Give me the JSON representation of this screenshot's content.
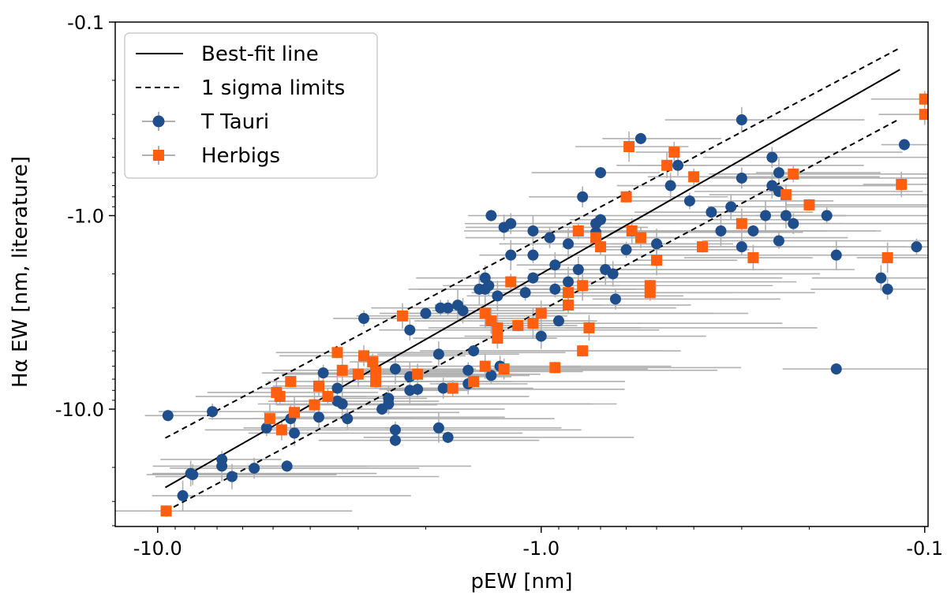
{
  "chart_data": {
    "type": "scatter",
    "xscale": "log",
    "yscale": "log",
    "xlabel": "pEW [nm]",
    "ylabel": "Hα EW [nm, literature]",
    "x_ticks": [
      {
        "value": -10.0,
        "label": "-10.0"
      },
      {
        "value": -1.0,
        "label": "-1.0"
      },
      {
        "value": -0.1,
        "label": "-0.1"
      }
    ],
    "y_ticks": [
      {
        "value": -0.1,
        "label": "-0.1"
      },
      {
        "value": -1.0,
        "label": "-1.0"
      },
      {
        "value": -10.0,
        "label": "-10.0"
      }
    ],
    "xlim": [
      -12.9,
      -0.098
    ],
    "ylim": [
      -0.1,
      -40.4
    ],
    "legend_position": "top-left",
    "lines": [
      {
        "name": "Best-fit line",
        "style": "solid",
        "x": [
          -9.55,
          -0.116
        ],
        "y": [
          -25.4,
          -0.176
        ]
      },
      {
        "name": "1 sigma limits",
        "style": "dashed",
        "x": [
          -9.55,
          -0.116
        ],
        "y": [
          -14.1,
          -0.136
        ]
      },
      {
        "name": "1 sigma limits",
        "style": "dashed",
        "x": [
          -9.55,
          -0.116
        ],
        "y": [
          -33.8,
          -0.316
        ]
      }
    ],
    "series": [
      {
        "name": "T Tauri",
        "color": "#1f4e8c",
        "marker": "circle",
        "x": [
          -9.4,
          -8.6,
          -8.2,
          -8.1,
          -7.2,
          -6.8,
          -6.8,
          -6.4,
          -5.6,
          -5.2,
          -4.6,
          -4.5,
          -4.4,
          -3.8,
          -3.7,
          -3.4,
          -3.4,
          -3.3,
          -3.2,
          -2.9,
          -2.6,
          -2.4,
          -2.5,
          -2.5,
          -2.4,
          -2.4,
          -2.2,
          -2.2,
          -2.2,
          -2.1,
          -2.0,
          -1.85,
          -1.85,
          -1.8,
          -1.75,
          -1.75,
          -1.65,
          -1.6,
          -1.55,
          -1.55,
          -1.5,
          -1.45,
          -1.4,
          -1.4,
          -1.35,
          -1.35,
          -1.3,
          -1.25,
          -1.2,
          -1.1,
          -1.05,
          -1.05,
          -1.0,
          -0.95,
          -0.92,
          -0.9,
          -0.85,
          -0.8,
          -0.78,
          -0.72,
          -0.7,
          -0.68,
          -0.65,
          -0.64,
          -0.6,
          -0.55,
          -0.5,
          -0.46,
          -0.44,
          -0.41,
          -0.36,
          -0.34,
          -0.32,
          -0.3,
          -0.3,
          -0.28,
          -0.26,
          -0.25,
          -0.25,
          -0.24,
          -0.24,
          -0.24,
          -0.23,
          -0.22,
          -0.18,
          -0.17,
          -0.17,
          -0.13,
          -0.125,
          -0.105,
          -0.113,
          -1.2,
          -0.92,
          -1.37,
          -1.05,
          -0.72,
          -0.85,
          -0.3,
          -1.28,
          -1.83,
          -0.7
        ],
        "y": [
          -10.8,
          -28.0,
          -21.5,
          -21.8,
          -10.3,
          -18.2,
          -19.7,
          -22.3,
          -20.2,
          -12.5,
          -19.7,
          -11.2,
          -13.3,
          -11.0,
          -6.5,
          -9.1,
          -7.8,
          -9.4,
          -11.2,
          -3.4,
          -10.0,
          -6.2,
          -8.8,
          -9.4,
          -12.8,
          -14.5,
          -6.8,
          -8.0,
          -3.9,
          -7.9,
          -3.2,
          -12.5,
          -5.2,
          -7.8,
          -3.0,
          -14.0,
          -2.9,
          -3.1,
          -7.4,
          -6.3,
          -5.0,
          -2.4,
          -2.1,
          -2.4,
          -6.7,
          -1.0,
          -2.6,
          -1.15,
          -1.1,
          -2.5,
          -2.1,
          -1.2,
          -4.2,
          -1.3,
          -2.4,
          -3.5,
          -2.2,
          -1.9,
          -0.8,
          -1.1,
          -0.6,
          -1.9,
          -2.0,
          -2.7,
          -1.5,
          -0.4,
          -1.4,
          -0.7,
          -0.55,
          -0.84,
          -0.96,
          -1.2,
          -0.9,
          -0.64,
          -1.45,
          -1.2,
          -1.0,
          -0.7,
          -0.5,
          -1.35,
          -0.75,
          -0.6,
          -1.0,
          -1.1,
          -1.0,
          -6.2,
          -1.6,
          -2.1,
          -2.4,
          -1.45,
          -0.43,
          -1.6,
          -1.8,
          -2.3,
          -1.6,
          -1.22,
          -1.4,
          -0.32,
          -6.0,
          -3.0,
          -1.05
        ]
      },
      {
        "name": "Herbigs",
        "color": "#ff5f0f",
        "marker": "square",
        "x": [
          -9.5,
          -5.1,
          -4.9,
          -4.75,
          -4.8,
          -4.5,
          -4.4,
          -3.9,
          -3.8,
          -3.6,
          -3.4,
          -3.3,
          -3.0,
          -2.9,
          -2.75,
          -2.7,
          -2.7,
          -2.3,
          -2.1,
          -1.7,
          -1.5,
          -1.4,
          -1.4,
          -1.25,
          -1.2,
          -1.15,
          -1.05,
          -1.0,
          -0.85,
          -0.85,
          -0.78,
          -0.78,
          -0.75,
          -0.72,
          -0.7,
          -0.6,
          -0.59,
          -0.58,
          -0.55,
          -0.52,
          -0.52,
          -0.5,
          -0.47,
          -0.45,
          -0.4,
          -0.38,
          -0.3,
          -0.28,
          -0.23,
          -0.22,
          -0.2,
          -0.125,
          -0.115,
          -0.1,
          -0.1,
          -0.92,
          -1.3,
          -1.35,
          -1.3,
          -0.8
        ],
        "y": [
          -33.6,
          -11.2,
          -8.2,
          -12.8,
          -8.6,
          -7.2,
          -10.4,
          -9.5,
          -7.6,
          -8.6,
          -5.1,
          -6.3,
          -6.6,
          -5.3,
          -5.7,
          -7.2,
          -6.4,
          -3.3,
          -6.6,
          -7.8,
          -7.2,
          -3.2,
          -6.0,
          -6.2,
          -2.2,
          -3.7,
          -3.6,
          -3.2,
          -2.5,
          -2.9,
          -5.0,
          -2.3,
          -3.8,
          -1.3,
          -1.45,
          -0.8,
          -0.44,
          -1.2,
          -1.3,
          -2.5,
          -2.3,
          -1.7,
          -0.55,
          -0.47,
          -0.63,
          -1.45,
          -1.1,
          -1.65,
          -0.78,
          -0.61,
          -0.88,
          -1.65,
          -0.69,
          -0.3,
          -0.25,
          -6.1,
          -3.8,
          -3.5,
          -4.3,
          -1.2
        ]
      }
    ]
  },
  "legend": {
    "entries": [
      {
        "label": "Best-fit line"
      },
      {
        "label": "1 sigma limits"
      },
      {
        "label": "T Tauri"
      },
      {
        "label": "Herbigs"
      }
    ]
  }
}
